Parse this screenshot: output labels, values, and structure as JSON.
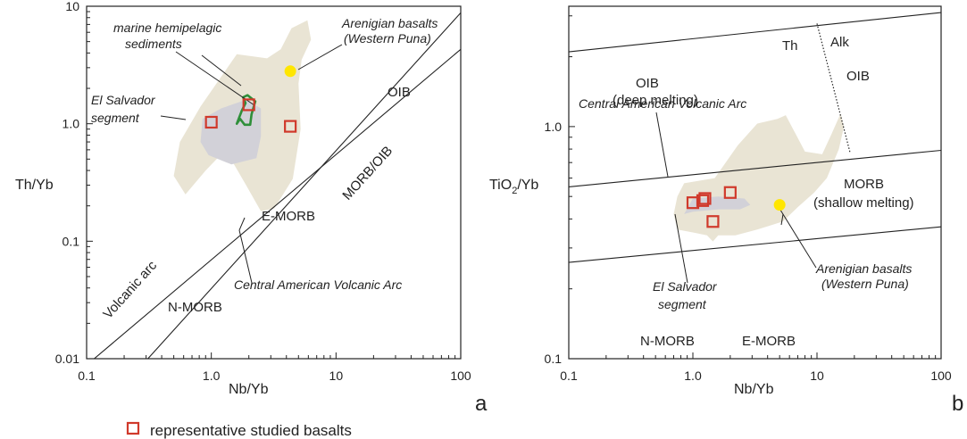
{
  "chart_data": [
    {
      "type": "scatter",
      "panel": "a",
      "xscale": "log",
      "yscale": "log",
      "xlim": [
        0.1,
        100
      ],
      "ylim": [
        0.01,
        10
      ],
      "xlabel": "Nb/Yb",
      "ylabel": "Th/Yb",
      "xticks": [
        "0.1",
        "1.0",
        "10",
        "100"
      ],
      "yticks": [
        "0.01",
        "0.1",
        "1.0",
        "10"
      ],
      "panel_label": "a",
      "series": [
        {
          "name": "representative studied basalts",
          "marker": "open-square",
          "color": "#d0392b",
          "points": [
            {
              "x": 1.0,
              "y": 1.03
            },
            {
              "x": 2.0,
              "y": 1.45
            },
            {
              "x": 4.3,
              "y": 0.95
            }
          ]
        },
        {
          "name": "Arenigian basalts (Western Puna)",
          "marker": "filled-circle",
          "color": "#ffe600",
          "points": [
            {
              "x": 4.3,
              "y": 2.8
            }
          ]
        }
      ],
      "fields": [
        {
          "name": "Central American Volcanic Arc",
          "color": "#e9e4d4",
          "polygon": [
            [
              0.62,
              0.25
            ],
            [
              0.9,
              0.4
            ],
            [
              1.3,
              0.6
            ],
            [
              1.9,
              0.3
            ],
            [
              2.5,
              0.18
            ],
            [
              3.2,
              0.19
            ],
            [
              4.5,
              0.34
            ],
            [
              5.2,
              0.9
            ],
            [
              5.0,
              2.2
            ],
            [
              5.3,
              3.5
            ],
            [
              6.3,
              5.2
            ],
            [
              5.9,
              7.6
            ],
            [
              4.4,
              6.5
            ],
            [
              3.6,
              4.3
            ],
            [
              2.8,
              3.6
            ],
            [
              1.6,
              3.9
            ],
            [
              1.1,
              2.2
            ],
            [
              0.82,
              1.4
            ],
            [
              0.56,
              0.7
            ],
            [
              0.5,
              0.36
            ]
          ]
        },
        {
          "name": "El Salvador segment",
          "color": "#d2d1d8",
          "polygon": [
            [
              0.95,
              0.54
            ],
            [
              1.45,
              0.45
            ],
            [
              2.3,
              0.51
            ],
            [
              2.5,
              0.78
            ],
            [
              2.5,
              1.35
            ],
            [
              1.9,
              1.6
            ],
            [
              1.2,
              1.35
            ],
            [
              0.85,
              1.1
            ],
            [
              0.82,
              0.7
            ]
          ]
        },
        {
          "name": "marine hemipelagic sediments",
          "color": "#2f8f3a",
          "polygon": [
            [
              1.95,
              1.75
            ],
            [
              2.25,
              1.55
            ],
            [
              2.1,
              1.2
            ],
            [
              2.05,
              0.98
            ],
            [
              1.85,
              0.98
            ],
            [
              1.7,
              1.1
            ],
            [
              1.6,
              1.0
            ],
            [
              1.75,
              1.28
            ],
            [
              1.88,
              1.5
            ],
            [
              1.8,
              1.68
            ]
          ]
        }
      ],
      "lines": [
        {
          "name": "Volcanic arc / OIB",
          "x": [
            0.115,
            100
          ],
          "y": [
            0.01,
            4.3
          ]
        },
        {
          "name": "MORB/OIB",
          "x": [
            0.31,
            100
          ],
          "y": [
            0.01,
            8.8
          ]
        }
      ],
      "labels": {
        "oib": "OIB",
        "morb_oib": "MORB/OIB",
        "emorb": "E-MORB",
        "nmorb": "N-MORB",
        "volcanic_arc": "Volcanic arc",
        "cava": "Central American Volcanic Arc",
        "sediments_1": "marine hemipelagic",
        "sediments_2": "sediments",
        "elsal_1": "El Salvador",
        "elsal_2": "segment",
        "aren_1": "Arenigian basalts",
        "aren_2": "(Western Puna)"
      }
    },
    {
      "type": "scatter",
      "panel": "b",
      "xscale": "log",
      "yscale": "log",
      "xlim": [
        0.1,
        100
      ],
      "ylim": [
        0.1,
        3.3
      ],
      "xlabel": "Nb/Yb",
      "ylabel_main": "TiO",
      "ylabel_sub": "2",
      "ylabel_tail": "/Yb",
      "xticks": [
        "0.1",
        "1.0",
        "10",
        "100"
      ],
      "yticks": [
        "0.1",
        "1.0"
      ],
      "panel_label": "b",
      "series": [
        {
          "name": "representative studied basalts",
          "marker": "open-square",
          "color": "#d0392b",
          "points": [
            {
              "x": 1.0,
              "y": 0.47
            },
            {
              "x": 1.2,
              "y": 0.48
            },
            {
              "x": 1.25,
              "y": 0.49
            },
            {
              "x": 2.0,
              "y": 0.52
            },
            {
              "x": 1.45,
              "y": 0.39
            }
          ]
        },
        {
          "name": "Arenigian basalts (Western Puna)",
          "marker": "filled-circle",
          "color": "#ffe600",
          "points": [
            {
              "x": 5.0,
              "y": 0.46
            }
          ]
        }
      ],
      "fields": [
        {
          "name": "Central American Volcanic Arc",
          "color": "#e9e4d4",
          "polygon": [
            [
              0.75,
              0.5
            ],
            [
              0.85,
              0.57
            ],
            [
              1.5,
              0.6
            ],
            [
              2.3,
              0.83
            ],
            [
              3.3,
              1.03
            ],
            [
              4.8,
              1.08
            ],
            [
              5.6,
              1.12
            ],
            [
              8.0,
              0.78
            ],
            [
              11,
              0.76
            ],
            [
              13,
              0.92
            ],
            [
              15.5,
              1.14
            ],
            [
              16.5,
              1.0
            ],
            [
              15,
              0.8
            ],
            [
              12,
              0.6
            ],
            [
              9.5,
              0.52
            ],
            [
              7.0,
              0.45
            ],
            [
              5.3,
              0.39
            ],
            [
              3.3,
              0.36
            ],
            [
              2.2,
              0.34
            ],
            [
              1.6,
              0.34
            ],
            [
              1.45,
              0.32
            ],
            [
              1.3,
              0.34
            ],
            [
              1.0,
              0.35
            ],
            [
              0.75,
              0.36
            ],
            [
              0.7,
              0.42
            ]
          ]
        },
        {
          "name": "El Salvador segment",
          "color": "#d2d1d8",
          "polygon": [
            [
              0.85,
              0.42
            ],
            [
              1.0,
              0.49
            ],
            [
              1.6,
              0.5
            ],
            [
              2.6,
              0.49
            ],
            [
              2.9,
              0.46
            ],
            [
              2.4,
              0.44
            ],
            [
              1.6,
              0.44
            ],
            [
              1.0,
              0.43
            ]
          ]
        }
      ],
      "lines": [
        {
          "name": "OIB/MORB upper",
          "x": [
            0.1,
            100
          ],
          "y": [
            2.1,
            3.1
          ]
        },
        {
          "name": "MORB/N-MORB lower",
          "x": [
            0.1,
            100
          ],
          "y": [
            0.26,
            0.37
          ]
        },
        {
          "name": "OIB/MORB middle",
          "x": [
            0.1,
            100
          ],
          "y": [
            0.55,
            0.79
          ]
        },
        {
          "name": "Th/Alk divide",
          "x": [
            10,
            18.5
          ],
          "y": [
            2.78,
            0.77
          ],
          "style": "dotted"
        }
      ],
      "labels": {
        "th": "Th",
        "alk": "Alk",
        "oib": "OIB",
        "oib_deep_1": "OIB",
        "oib_deep_2": "(deep melting)",
        "morb_1": "MORB",
        "morb_2": "(shallow melting)",
        "nmorb": "N-MORB",
        "emorb": "E-MORB",
        "cava": "Central American Volcanic Arc",
        "elsal_1": "El Salvador",
        "elsal_2": "segment",
        "aren_1": "Arenigian basalts",
        "aren_2": "(Western Puna)"
      }
    }
  ],
  "legend": {
    "label": "representative studied basalts",
    "marker_color": "#d0392b"
  }
}
